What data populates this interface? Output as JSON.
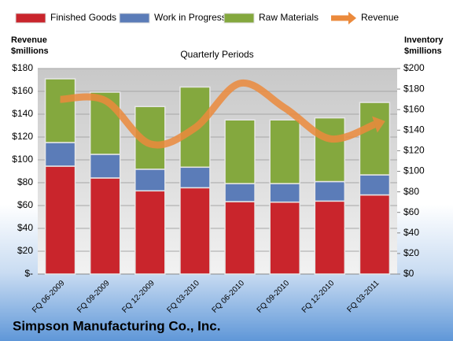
{
  "chart_data": {
    "type": "bar",
    "stacked": true,
    "title": "Quarterly Periods",
    "y_label": "Revenue $millions",
    "y2_label": "Inventory $millions",
    "caption": "Simpson Manufacturing Co., Inc.",
    "categories": [
      "FQ 06-2009",
      "FQ 09-2009",
      "FQ 12-2009",
      "FQ 03-2010",
      "FQ 06-2010",
      "FQ 09-2010",
      "FQ 12-2010",
      "FQ 03-2011"
    ],
    "series": [
      {
        "name": "Finished Goods",
        "type": "bar",
        "axis": "y2",
        "color": "#c9252c",
        "values": [
          105,
          93.5,
          81,
          84,
          70.5,
          70,
          71,
          77
        ]
      },
      {
        "name": "Work in Progress",
        "type": "bar",
        "axis": "y2",
        "color": "#5b7cb8",
        "values": [
          23,
          23,
          21,
          20,
          17.5,
          18,
          19,
          19.5
        ]
      },
      {
        "name": "Raw Materials",
        "type": "bar",
        "axis": "y2",
        "color": "#84a83e",
        "values": [
          62,
          60.5,
          61,
          78,
          62,
          62,
          62,
          70.5
        ]
      },
      {
        "name": "Revenue",
        "type": "line",
        "axis": "y",
        "color": "#eb8a3c",
        "values": [
          153,
          152,
          114,
          128,
          167,
          145.5,
          118.5,
          131
        ]
      }
    ],
    "ylim": [
      0,
      180
    ],
    "yticks": [
      {
        "value": 0,
        "label": "$-"
      },
      {
        "value": 20,
        "label": "$20"
      },
      {
        "value": 40,
        "label": "$40"
      },
      {
        "value": 60,
        "label": "$60"
      },
      {
        "value": 80,
        "label": "$80"
      },
      {
        "value": 100,
        "label": "$100"
      },
      {
        "value": 120,
        "label": "$120"
      },
      {
        "value": 140,
        "label": "$140"
      },
      {
        "value": 160,
        "label": "$160"
      },
      {
        "value": 180,
        "label": "$180"
      }
    ],
    "y2lim": [
      0,
      200
    ],
    "y2ticks": [
      {
        "value": 0,
        "label": "$0"
      },
      {
        "value": 20,
        "label": "$20"
      },
      {
        "value": 40,
        "label": "$40"
      },
      {
        "value": 60,
        "label": "$60"
      },
      {
        "value": 80,
        "label": "$80"
      },
      {
        "value": 100,
        "label": "$100"
      },
      {
        "value": 120,
        "label": "$120"
      },
      {
        "value": 140,
        "label": "$140"
      },
      {
        "value": 160,
        "label": "$160"
      },
      {
        "value": 180,
        "label": "$180"
      },
      {
        "value": 200,
        "label": "$200"
      }
    ],
    "grid": true,
    "legend": "top"
  }
}
